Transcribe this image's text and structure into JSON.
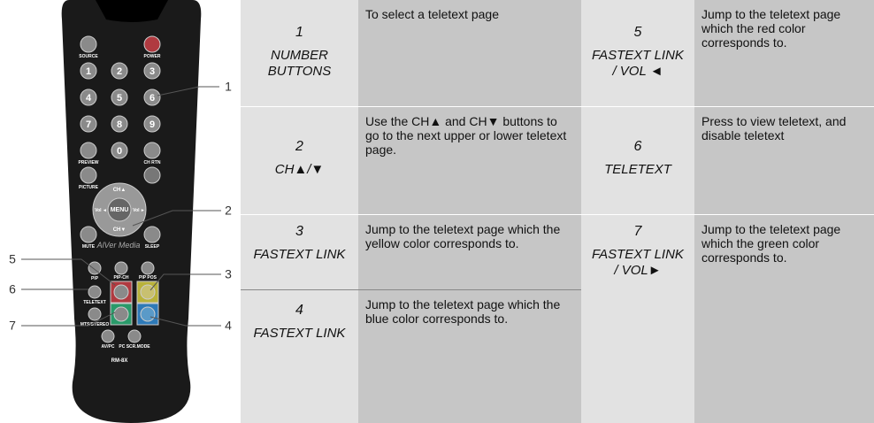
{
  "remote": {
    "brand": "AlVer Media",
    "model": "RM-8X",
    "buttons": {
      "source": "SOURCE",
      "power": "POWER",
      "d1": "1",
      "d2": "2",
      "d3": "3",
      "d4": "4",
      "d5": "5",
      "d6": "6",
      "d7": "7",
      "d8": "8",
      "d9": "9",
      "d0": "0",
      "preview": "PREVIEW",
      "chrtn": "CH RTN",
      "picture": "PICTURE",
      "chup": "CH▲",
      "chdown": "CH▼",
      "menu": "MENU",
      "volleft": "Vol ◄",
      "volright": "Vol ►",
      "mute": "MUTE",
      "sleep": "SLEEP",
      "pip": "PIP",
      "pipch": "PIP-CH",
      "pippos": "PIP POS",
      "teletext": "TELETEXT",
      "mts": "MTS/STEREO",
      "avpc": "AV/PC",
      "pcscr": "PC SCR.MODE"
    }
  },
  "callouts": [
    "1",
    "2",
    "3",
    "4",
    "5",
    "6",
    "7"
  ],
  "table": {
    "items": [
      {
        "number": "1",
        "name": "NUMBER BUTTONS",
        "description": "To select a teletext page"
      },
      {
        "number": "2",
        "name": "CH▲/▼",
        "description": "Use the CH▲ and CH▼ buttons to go to the next upper or lower teletext page."
      },
      {
        "number": "3",
        "name": "FASTEXT LINK",
        "description": "Jump to the teletext page which the yellow color corresponds to."
      },
      {
        "number": "4",
        "name": "FASTEXT LINK",
        "description": "Jump to the teletext page which the blue color corresponds to."
      },
      {
        "number": "5",
        "name": "FASTEXT LINK / VOL ◄",
        "description": "Jump to the teletext page which the red color corresponds to."
      },
      {
        "number": "6",
        "name": "TELETEXT",
        "description": "Press to view teletext, and disable teletext"
      },
      {
        "number": "7",
        "name": "FASTEXT LINK / VOL►",
        "description": "Jump to the teletext page which the green color corresponds to."
      }
    ]
  }
}
